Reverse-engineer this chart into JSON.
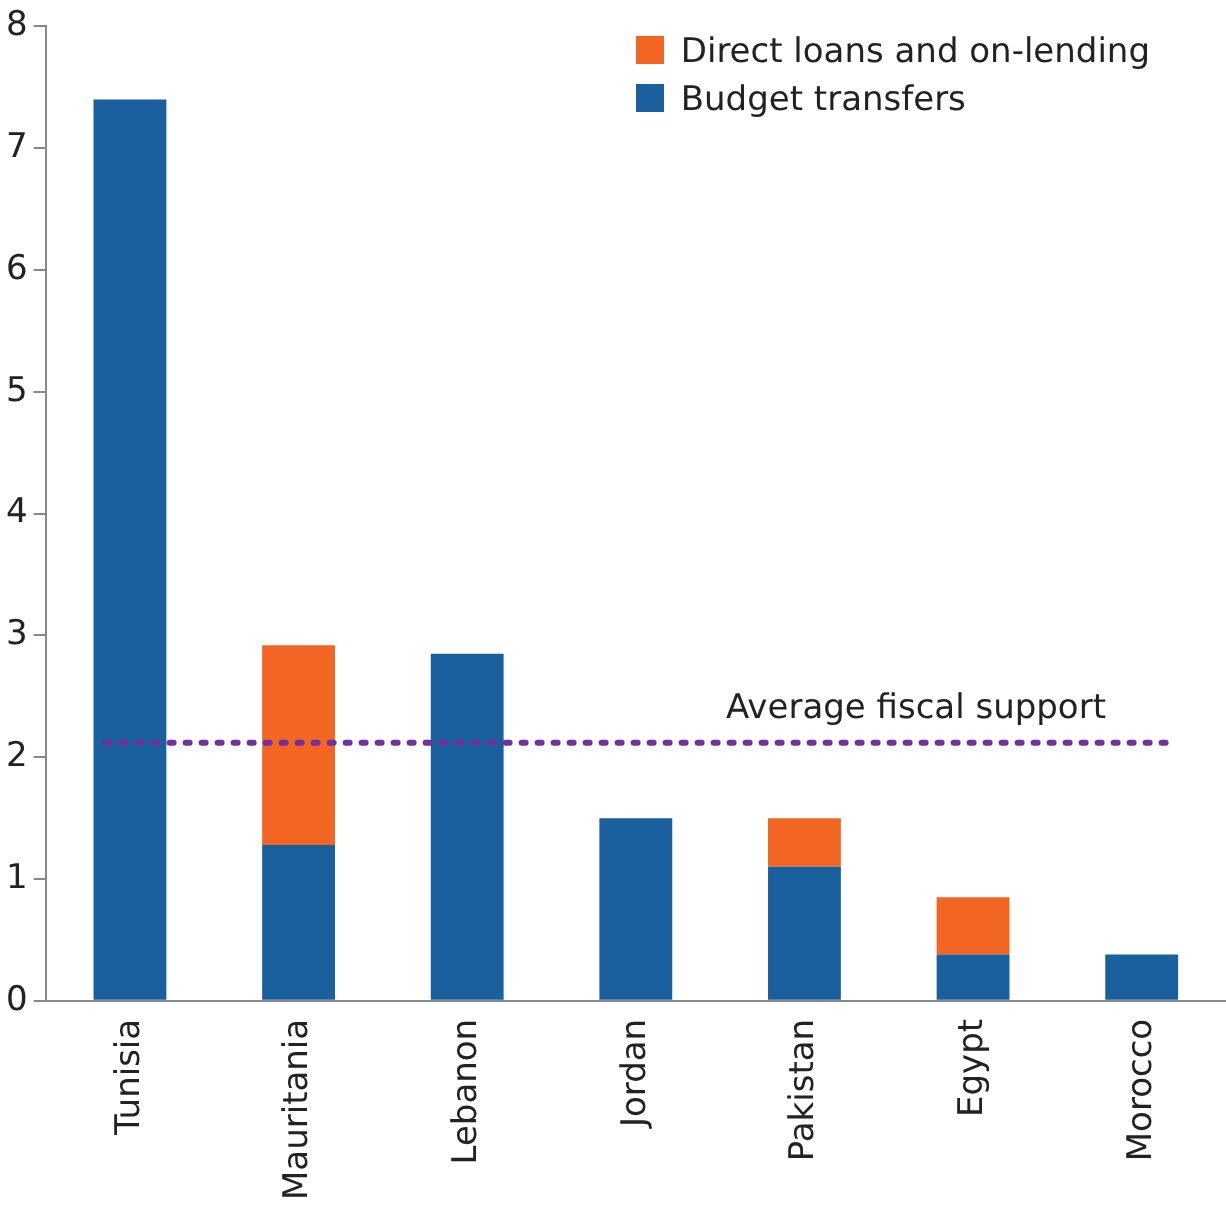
{
  "chart_data": {
    "type": "bar",
    "stacked": true,
    "categories": [
      "Tunisia",
      "Mauritania",
      "Lebanon",
      "Jordan",
      "Pakistan",
      "Egypt",
      "Morocco"
    ],
    "series": [
      {
        "name": "Budget transfers",
        "color": "#1a5f9e",
        "values": [
          7.4,
          1.28,
          2.85,
          1.5,
          1.1,
          0.38,
          0.38
        ]
      },
      {
        "name": "Direct loans and on-lending",
        "color": "#f26522",
        "values": [
          null,
          1.64,
          null,
          null,
          0.4,
          0.47,
          null
        ]
      }
    ],
    "ylim": [
      0,
      8
    ],
    "yticks": [
      0,
      1,
      2,
      3,
      4,
      5,
      6,
      7,
      8
    ],
    "grid": false,
    "legend": "top right",
    "ref_lines": [
      {
        "axis": "y",
        "value": 2.12,
        "label": "Average fiscal support",
        "color": "#7030a0",
        "line_style": "dotted"
      }
    ]
  }
}
